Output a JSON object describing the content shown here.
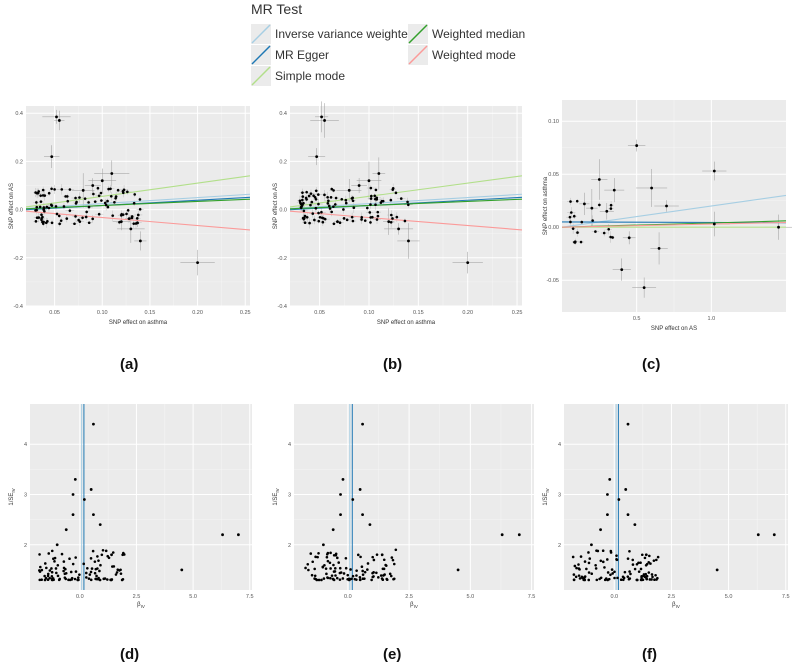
{
  "legend": {
    "title": "MR Test",
    "items": [
      {
        "label": "Inverse variance weighted",
        "color": "#a6cee3"
      },
      {
        "label": "MR Egger",
        "color": "#1f78b4"
      },
      {
        "label": "Simple mode",
        "color": "#b2df8a"
      },
      {
        "label": "Weighted median",
        "color": "#33a02c"
      },
      {
        "label": "Weighted mode",
        "color": "#fb9a99"
      }
    ]
  },
  "captions": [
    "(a)",
    "(b)",
    "(c)",
    "(d)",
    "(e)",
    "(f)"
  ],
  "chart_data": [
    {
      "type": "scatter",
      "title": "",
      "xlabel": "SNP effect on asthma",
      "ylabel": "SNP effect on AS",
      "xlim": [
        0.02,
        0.255
      ],
      "ylim": [
        -0.4,
        0.43
      ],
      "xticks": [
        0.05,
        0.1,
        0.15,
        0.2,
        0.25
      ],
      "xtick_labels": [
        "0.05",
        "0.10",
        "0.15",
        "0.20",
        "0.25"
      ],
      "yticks": [
        -0.4,
        -0.2,
        0.0,
        0.2,
        0.4
      ],
      "ytick_labels": [
        "-0.4",
        "-0.2",
        "0.0",
        "0.2",
        "0.4"
      ],
      "points": [
        {
          "x": 0.047,
          "y": 0.22
        },
        {
          "x": 0.052,
          "y": 0.385
        },
        {
          "x": 0.055,
          "y": 0.37
        },
        {
          "x": 0.2,
          "y": -0.22
        },
        {
          "x": 0.14,
          "y": -0.13
        },
        {
          "x": 0.13,
          "y": -0.08
        },
        {
          "x": 0.12,
          "y": -0.05
        },
        {
          "x": 0.11,
          "y": 0.15
        },
        {
          "x": 0.1,
          "y": 0.12
        },
        {
          "x": 0.09,
          "y": 0.1
        },
        {
          "x": 0.08,
          "y": 0.08
        }
      ],
      "cloud": {
        "n": 110,
        "x_range": [
          0.03,
          0.14
        ],
        "y_range": [
          -0.06,
          0.09
        ]
      },
      "lines": [
        {
          "method": "Inverse variance weighted",
          "slope": 0.25
        },
        {
          "method": "MR Egger",
          "intercept": -0.005,
          "slope": 0.22
        },
        {
          "method": "Simple mode",
          "slope": 0.55
        },
        {
          "method": "Weighted median",
          "slope": 0.17
        },
        {
          "method": "Weighted mode",
          "slope": -0.33
        }
      ]
    },
    {
      "type": "scatter",
      "title": "",
      "xlabel": "SNP effect on asthma",
      "ylabel": "SNP effect on AS",
      "xlim": [
        0.02,
        0.255
      ],
      "ylim": [
        -0.4,
        0.43
      ],
      "xticks": [
        0.05,
        0.1,
        0.15,
        0.2,
        0.25
      ],
      "xtick_labels": [
        "0.05",
        "0.10",
        "0.15",
        "0.20",
        "0.25"
      ],
      "yticks": [
        -0.4,
        -0.2,
        0.0,
        0.2,
        0.4
      ],
      "ytick_labels": [
        "-0.4",
        "-0.2",
        "0.0",
        "0.2",
        "0.4"
      ],
      "points": [
        {
          "x": 0.047,
          "y": 0.22
        },
        {
          "x": 0.052,
          "y": 0.385
        },
        {
          "x": 0.055,
          "y": 0.37
        },
        {
          "x": 0.2,
          "y": -0.22
        },
        {
          "x": 0.14,
          "y": -0.13
        },
        {
          "x": 0.13,
          "y": -0.08
        },
        {
          "x": 0.12,
          "y": -0.05
        },
        {
          "x": 0.11,
          "y": 0.15
        },
        {
          "x": 0.1,
          "y": 0.12
        },
        {
          "x": 0.09,
          "y": 0.1
        },
        {
          "x": 0.08,
          "y": 0.08
        }
      ],
      "cloud": {
        "n": 110,
        "x_range": [
          0.03,
          0.14
        ],
        "y_range": [
          -0.06,
          0.09
        ]
      },
      "lines": [
        {
          "method": "Inverse variance weighted",
          "slope": 0.25
        },
        {
          "method": "MR Egger",
          "intercept": -0.005,
          "slope": 0.22
        },
        {
          "method": "Simple mode",
          "slope": 0.55
        },
        {
          "method": "Weighted median",
          "slope": 0.17
        },
        {
          "method": "Weighted mode",
          "slope": -0.33
        }
      ]
    },
    {
      "type": "scatter",
      "title": "",
      "xlabel": "SNP effect on AS",
      "ylabel": "SNP effect on asthma",
      "xlim": [
        0.0,
        1.5
      ],
      "ylim": [
        -0.08,
        0.12
      ],
      "xticks": [
        0.5,
        1.0
      ],
      "xtick_labels": [
        "0.5",
        "1.0"
      ],
      "yticks": [
        -0.05,
        0.0,
        0.05,
        0.1
      ],
      "ytick_labels": [
        "-0.05",
        "0.00",
        "0.05",
        "0.10"
      ],
      "points": [
        {
          "x": 0.5,
          "y": 0.077
        },
        {
          "x": 0.55,
          "y": -0.057
        },
        {
          "x": 0.4,
          "y": -0.04
        },
        {
          "x": 1.02,
          "y": 0.053
        },
        {
          "x": 1.02,
          "y": 0.003
        },
        {
          "x": 1.45,
          "y": 0.0
        },
        {
          "x": 0.6,
          "y": 0.037
        },
        {
          "x": 0.25,
          "y": 0.045
        },
        {
          "x": 0.35,
          "y": 0.035
        },
        {
          "x": 0.3,
          "y": 0.015
        },
        {
          "x": 0.7,
          "y": 0.02
        },
        {
          "x": 0.45,
          "y": -0.01
        },
        {
          "x": 0.65,
          "y": -0.02
        },
        {
          "x": 0.15,
          "y": 0.022
        },
        {
          "x": 0.2,
          "y": 0.018
        }
      ],
      "cloud": {
        "n": 22,
        "x_range": [
          0.05,
          0.35
        ],
        "y_range": [
          -0.015,
          0.025
        ]
      },
      "lines": [
        {
          "method": "Inverse variance weighted",
          "slope": 0.02
        },
        {
          "method": "MR Egger",
          "intercept": 0.005,
          "slope": -0.0005
        },
        {
          "method": "Simple mode",
          "slope": 0.0
        },
        {
          "method": "Weighted median",
          "slope": 0.004
        },
        {
          "method": "Weighted mode",
          "slope": 0.003
        }
      ]
    },
    {
      "type": "scatter",
      "title": "",
      "xlabel": "βIV",
      "ylabel": "1/SEIV",
      "xlim": [
        -2.2,
        7.6
      ],
      "ylim": [
        1.1,
        4.8
      ],
      "xticks": [
        0.0,
        2.5,
        5.0,
        7.5
      ],
      "xtick_labels": [
        "0.0",
        "2.5",
        "5.0",
        "7.5"
      ],
      "yticks": [
        2,
        3,
        4
      ],
      "ytick_labels": [
        "2",
        "3",
        "4"
      ],
      "vlines": [
        {
          "method": "Inverse variance weighted",
          "x": 0.08
        },
        {
          "method": "MR Egger",
          "x": 0.18
        }
      ],
      "points": [
        {
          "x": 0.6,
          "y": 4.4
        },
        {
          "x": -0.2,
          "y": 3.3
        },
        {
          "x": -0.3,
          "y": 3.0
        },
        {
          "x": 0.5,
          "y": 3.1
        },
        {
          "x": 0.2,
          "y": 2.9
        },
        {
          "x": 6.3,
          "y": 2.2
        },
        {
          "x": 7.0,
          "y": 2.2
        },
        {
          "x": 4.5,
          "y": 1.5
        },
        {
          "x": -0.6,
          "y": 2.3
        },
        {
          "x": 0.9,
          "y": 2.4
        },
        {
          "x": -1.0,
          "y": 2.0
        },
        {
          "x": 1.4,
          "y": 1.8
        },
        {
          "x": -0.3,
          "y": 2.6
        },
        {
          "x": 0.6,
          "y": 2.6
        }
      ],
      "cloud": {
        "n": 110,
        "x_range": [
          -1.8,
          2.0
        ],
        "y_range": [
          1.3,
          1.9
        ]
      }
    },
    {
      "type": "scatter",
      "title": "",
      "xlabel": "βIV",
      "ylabel": "1/SEIV",
      "xlim": [
        -2.2,
        7.6
      ],
      "ylim": [
        1.1,
        4.8
      ],
      "xticks": [
        0.0,
        2.5,
        5.0,
        7.5
      ],
      "xtick_labels": [
        "0.0",
        "2.5",
        "5.0",
        "7.5"
      ],
      "yticks": [
        2,
        3,
        4
      ],
      "ytick_labels": [
        "2",
        "3",
        "4"
      ],
      "vlines": [
        {
          "method": "Inverse variance weighted",
          "x": 0.08
        },
        {
          "method": "MR Egger",
          "x": 0.18
        }
      ],
      "points": [
        {
          "x": 0.6,
          "y": 4.4
        },
        {
          "x": -0.2,
          "y": 3.3
        },
        {
          "x": -0.3,
          "y": 3.0
        },
        {
          "x": 0.5,
          "y": 3.1
        },
        {
          "x": 0.2,
          "y": 2.9
        },
        {
          "x": 6.3,
          "y": 2.2
        },
        {
          "x": 7.0,
          "y": 2.2
        },
        {
          "x": 4.5,
          "y": 1.5
        },
        {
          "x": -0.6,
          "y": 2.3
        },
        {
          "x": 0.9,
          "y": 2.4
        },
        {
          "x": -1.0,
          "y": 2.0
        },
        {
          "x": 1.4,
          "y": 1.8
        },
        {
          "x": -0.3,
          "y": 2.6
        },
        {
          "x": 0.6,
          "y": 2.6
        }
      ],
      "cloud": {
        "n": 110,
        "x_range": [
          -1.8,
          2.0
        ],
        "y_range": [
          1.3,
          1.9
        ]
      }
    },
    {
      "type": "scatter",
      "title": "",
      "xlabel": "βIV",
      "ylabel": "1/SEIV",
      "xlim": [
        -2.2,
        7.6
      ],
      "ylim": [
        1.1,
        4.8
      ],
      "xticks": [
        0.0,
        2.5,
        5.0,
        7.5
      ],
      "xtick_labels": [
        "0.0",
        "2.5",
        "5.0",
        "7.5"
      ],
      "yticks": [
        2,
        3,
        4
      ],
      "ytick_labels": [
        "2",
        "3",
        "4"
      ],
      "vlines": [
        {
          "method": "Inverse variance weighted",
          "x": 0.08
        },
        {
          "method": "MR Egger",
          "x": 0.18
        }
      ],
      "points": [
        {
          "x": 0.6,
          "y": 4.4
        },
        {
          "x": -0.2,
          "y": 3.3
        },
        {
          "x": -0.3,
          "y": 3.0
        },
        {
          "x": 0.5,
          "y": 3.1
        },
        {
          "x": 0.2,
          "y": 2.9
        },
        {
          "x": 6.3,
          "y": 2.2
        },
        {
          "x": 7.0,
          "y": 2.2
        },
        {
          "x": 4.5,
          "y": 1.5
        },
        {
          "x": -0.6,
          "y": 2.3
        },
        {
          "x": 0.9,
          "y": 2.4
        },
        {
          "x": -1.0,
          "y": 2.0
        },
        {
          "x": 1.4,
          "y": 1.8
        },
        {
          "x": -0.3,
          "y": 2.6
        },
        {
          "x": 0.6,
          "y": 2.6
        }
      ],
      "cloud": {
        "n": 110,
        "x_range": [
          -1.8,
          2.0
        ],
        "y_range": [
          1.3,
          1.9
        ]
      }
    }
  ]
}
